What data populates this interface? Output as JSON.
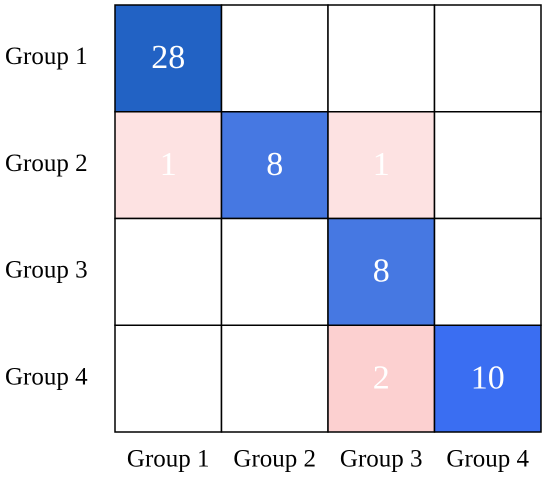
{
  "chart_data": {
    "type": "heatmap",
    "rows": [
      "Group 1",
      "Group 2",
      "Group 3",
      "Group 4"
    ],
    "columns": [
      "Group 1",
      "Group 2",
      "Group 3",
      "Group 4"
    ],
    "values": [
      [
        28,
        null,
        null,
        null
      ],
      [
        1,
        8,
        1,
        null
      ],
      [
        null,
        null,
        8,
        null
      ],
      [
        null,
        null,
        2,
        10
      ]
    ],
    "colors": [
      [
        "#2262c4",
        null,
        null,
        null
      ],
      [
        "#fde2e2",
        "#4678e2",
        "#fde2e2",
        null
      ],
      [
        null,
        null,
        "#4678e2",
        null
      ],
      [
        null,
        null,
        "#fcd0d0",
        "#3a6ef2"
      ]
    ]
  }
}
